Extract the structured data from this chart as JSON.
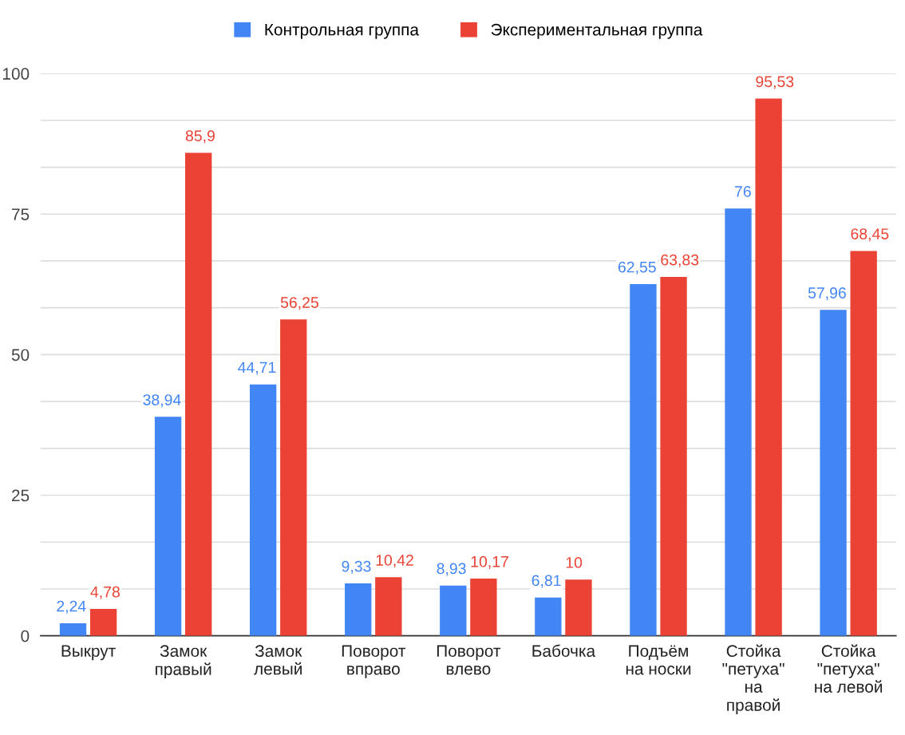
{
  "chart_data": {
    "type": "bar",
    "categories": [
      "Выкрут",
      "Замок\nправый",
      "Замок\nлевый",
      "Поворот\nвправо",
      "Поворот\nвлево",
      "Бабочка",
      "Подъём\nна носки",
      "Стойка\n\"петуха\"\nна\nправой",
      "Стойка\n\"петуха\"\nна левой"
    ],
    "series": [
      {
        "name": "Контрольная группа",
        "color": "#4285f4",
        "values": [
          2.24,
          38.94,
          44.71,
          9.33,
          8.93,
          6.81,
          62.55,
          76,
          57.96
        ],
        "value_labels": [
          "2,24",
          "38,94",
          "44,71",
          "9,33",
          "8,93",
          "6,81",
          "62,55",
          "76",
          "57,96"
        ]
      },
      {
        "name": "Экспериментальная группа",
        "color": "#ea4335",
        "values": [
          4.78,
          85.9,
          56.25,
          10.42,
          10.17,
          10,
          63.83,
          95.53,
          68.45
        ],
        "value_labels": [
          "4,78",
          "85,9",
          "56,25",
          "10,42",
          "10,17",
          "10",
          "63,83",
          "95,53",
          "68,45"
        ]
      }
    ],
    "ylim": [
      0,
      100
    ],
    "yticks": [
      0,
      {
        "value": 8.33,
        "label": null
      },
      {
        "value": 16.67,
        "label": null
      },
      25,
      {
        "value": 33.33,
        "label": null
      },
      {
        "value": 41.67,
        "label": null
      },
      50,
      {
        "value": 58.33,
        "label": null
      },
      {
        "value": 66.67,
        "label": null
      },
      75,
      {
        "value": 83.33,
        "label": null
      },
      {
        "value": 91.67,
        "label": null
      },
      100
    ],
    "grid": "y",
    "legend": "top"
  }
}
